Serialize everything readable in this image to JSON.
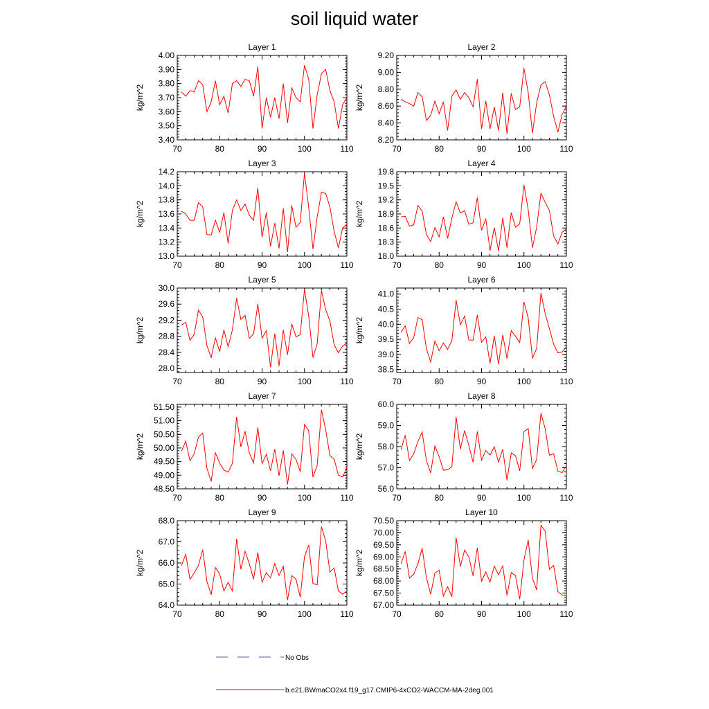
{
  "title": "soil liquid water",
  "legend": {
    "no_obs_label": "No Obs",
    "no_obs_color": "#5a5ab4",
    "model_label": "b.e21.BWmaCO2x4.f19_g17.CMIP6-4xCO2-WACCM-MA-2deg.001",
    "model_color": "#ff0000"
  },
  "chart_data": [
    {
      "type": "line",
      "title": "Layer 1",
      "ylabel": "kg/m^2",
      "xlim": [
        70,
        110
      ],
      "ylim": [
        3.4,
        4.0
      ],
      "xticks": [
        "70",
        "80",
        "90",
        "100",
        "110"
      ],
      "yticks": [
        "3.40",
        "3.50",
        "3.60",
        "3.70",
        "3.80",
        "3.90",
        "4.00"
      ],
      "series": [
        {
          "color": "#ff0000",
          "x": [
            71,
            72,
            73,
            74,
            75,
            76,
            77,
            78,
            79,
            80,
            81,
            82,
            83,
            84,
            85,
            86,
            87,
            88,
            89,
            90,
            91,
            92,
            93,
            94,
            95,
            96,
            97,
            98,
            99,
            100,
            101,
            102,
            103,
            104,
            105,
            106,
            107,
            108,
            109,
            110
          ],
          "values": [
            3.74,
            3.71,
            3.75,
            3.74,
            3.82,
            3.79,
            3.6,
            3.67,
            3.82,
            3.65,
            3.71,
            3.59,
            3.8,
            3.82,
            3.78,
            3.83,
            3.82,
            3.71,
            3.92,
            3.48,
            3.7,
            3.56,
            3.7,
            3.55,
            3.8,
            3.52,
            3.77,
            3.7,
            3.67,
            3.93,
            3.83,
            3.48,
            3.72,
            3.87,
            3.9,
            3.75,
            3.67,
            3.48,
            3.65,
            3.7
          ]
        }
      ]
    },
    {
      "type": "line",
      "title": "Layer 2",
      "ylabel": "kg/m^2",
      "xlim": [
        70,
        110
      ],
      "ylim": [
        8.2,
        9.2
      ],
      "xticks": [
        "70",
        "80",
        "90",
        "100",
        "110"
      ],
      "yticks": [
        "8.20",
        "8.40",
        "8.60",
        "8.80",
        "9.00",
        "9.20"
      ],
      "series": [
        {
          "color": "#ff0000",
          "x": [
            71,
            72,
            73,
            74,
            75,
            76,
            77,
            78,
            79,
            80,
            81,
            82,
            83,
            84,
            85,
            86,
            87,
            88,
            89,
            90,
            91,
            92,
            93,
            94,
            95,
            96,
            97,
            98,
            99,
            100,
            101,
            102,
            103,
            104,
            105,
            106,
            107,
            108,
            109,
            110
          ],
          "values": [
            8.68,
            8.65,
            8.63,
            8.6,
            8.76,
            8.71,
            8.43,
            8.49,
            8.66,
            8.51,
            8.65,
            8.31,
            8.72,
            8.79,
            8.68,
            8.76,
            8.7,
            8.59,
            8.92,
            8.33,
            8.66,
            8.33,
            8.59,
            8.31,
            8.76,
            8.27,
            8.75,
            8.56,
            8.59,
            9.05,
            8.76,
            8.28,
            8.64,
            8.85,
            8.89,
            8.73,
            8.48,
            8.29,
            8.5,
            8.6
          ]
        }
      ]
    },
    {
      "type": "line",
      "title": "Layer 3",
      "ylabel": "kg/m^2",
      "xlim": [
        70,
        110
      ],
      "ylim": [
        13.0,
        14.2
      ],
      "xticks": [
        "70",
        "80",
        "90",
        "100",
        "110"
      ],
      "yticks": [
        "13.0",
        "13.2",
        "13.4",
        "13.6",
        "13.8",
        "14.0",
        "14.2"
      ],
      "series": [
        {
          "color": "#ff0000",
          "x": [
            71,
            72,
            73,
            74,
            75,
            76,
            77,
            78,
            79,
            80,
            81,
            82,
            83,
            84,
            85,
            86,
            87,
            88,
            89,
            90,
            91,
            92,
            93,
            94,
            95,
            96,
            97,
            98,
            99,
            100,
            101,
            102,
            103,
            104,
            105,
            106,
            107,
            108,
            109,
            110
          ],
          "values": [
            13.64,
            13.6,
            13.51,
            13.51,
            13.76,
            13.7,
            13.31,
            13.3,
            13.51,
            13.34,
            13.62,
            13.18,
            13.65,
            13.8,
            13.65,
            13.74,
            13.58,
            13.51,
            13.97,
            13.27,
            13.62,
            13.14,
            13.47,
            13.11,
            13.68,
            13.06,
            13.72,
            13.41,
            13.48,
            14.18,
            13.69,
            13.1,
            13.56,
            13.91,
            13.89,
            13.7,
            13.35,
            13.12,
            13.4,
            13.45
          ]
        }
      ]
    },
    {
      "type": "line",
      "title": "Layer 4",
      "ylabel": "kg/m^2",
      "xlim": [
        70,
        110
      ],
      "ylim": [
        18.0,
        19.8
      ],
      "xticks": [
        "70",
        "80",
        "90",
        "100",
        "110"
      ],
      "yticks": [
        "18.0",
        "18.3",
        "18.6",
        "18.9",
        "19.2",
        "19.5",
        "19.8"
      ],
      "series": [
        {
          "color": "#ff0000",
          "x": [
            71,
            72,
            73,
            74,
            75,
            76,
            77,
            78,
            79,
            80,
            81,
            82,
            83,
            84,
            85,
            86,
            87,
            88,
            89,
            90,
            91,
            92,
            93,
            94,
            95,
            96,
            97,
            98,
            99,
            100,
            101,
            102,
            103,
            104,
            105,
            106,
            107,
            108,
            109,
            110
          ],
          "values": [
            18.84,
            18.85,
            18.64,
            18.67,
            19.08,
            18.96,
            18.46,
            18.31,
            18.61,
            18.41,
            18.84,
            18.38,
            18.81,
            19.16,
            18.92,
            18.97,
            18.68,
            18.71,
            19.25,
            18.55,
            18.8,
            18.12,
            18.61,
            18.11,
            18.82,
            18.18,
            18.93,
            18.62,
            18.69,
            19.52,
            18.99,
            18.18,
            18.62,
            19.34,
            19.15,
            18.97,
            18.43,
            18.26,
            18.51,
            18.58
          ]
        }
      ]
    },
    {
      "type": "line",
      "title": "Layer 5",
      "ylabel": "kg/m^2",
      "xlim": [
        70,
        110
      ],
      "ylim": [
        27.9,
        30.0
      ],
      "xticks": [
        "70",
        "80",
        "90",
        "100",
        "110"
      ],
      "yticks": [
        "28.0",
        "28.4",
        "28.8",
        "29.2",
        "29.6",
        "30.0"
      ],
      "series": [
        {
          "color": "#ff0000",
          "x": [
            71,
            72,
            73,
            74,
            75,
            76,
            77,
            78,
            79,
            80,
            81,
            82,
            83,
            84,
            85,
            86,
            87,
            88,
            89,
            90,
            91,
            92,
            93,
            94,
            95,
            96,
            97,
            98,
            99,
            100,
            101,
            102,
            103,
            104,
            105,
            106,
            107,
            108,
            109,
            110
          ],
          "values": [
            29.08,
            29.15,
            28.7,
            28.85,
            29.45,
            29.28,
            28.57,
            28.27,
            28.76,
            28.42,
            28.96,
            28.54,
            28.96,
            29.75,
            29.22,
            29.32,
            28.75,
            28.86,
            29.6,
            28.75,
            28.94,
            28.03,
            28.87,
            28.06,
            28.96,
            28.34,
            29.11,
            28.79,
            28.84,
            29.97,
            29.3,
            28.27,
            28.62,
            29.94,
            29.46,
            29.18,
            28.59,
            28.39,
            28.56,
            28.63
          ]
        }
      ]
    },
    {
      "type": "line",
      "title": "Layer 6",
      "ylabel": "kg/m^2",
      "xlim": [
        70,
        110
      ],
      "ylim": [
        38.4,
        41.2
      ],
      "xticks": [
        "70",
        "80",
        "90",
        "100",
        "110"
      ],
      "yticks": [
        "38.5",
        "39.0",
        "39.5",
        "40.0",
        "40.5",
        "41.0"
      ],
      "series": [
        {
          "color": "#ff0000",
          "x": [
            71,
            72,
            73,
            74,
            75,
            76,
            77,
            78,
            79,
            80,
            81,
            82,
            83,
            84,
            85,
            86,
            87,
            88,
            89,
            90,
            91,
            92,
            93,
            94,
            95,
            96,
            97,
            98,
            99,
            100,
            101,
            102,
            103,
            104,
            105,
            106,
            107,
            108,
            109,
            110
          ],
          "values": [
            39.73,
            39.95,
            39.36,
            39.56,
            40.22,
            40.15,
            39.19,
            38.75,
            39.44,
            39.12,
            39.38,
            39.17,
            39.45,
            40.8,
            39.98,
            40.27,
            39.48,
            39.47,
            40.31,
            39.4,
            39.58,
            38.7,
            39.62,
            38.68,
            39.65,
            38.86,
            39.79,
            39.6,
            39.39,
            40.74,
            40.21,
            38.88,
            39.2,
            41.04,
            40.36,
            39.85,
            39.34,
            39.05,
            39.08,
            39.25
          ]
        }
      ]
    },
    {
      "type": "line",
      "title": "Layer 7",
      "ylabel": "kg/m^2",
      "xlim": [
        70,
        110
      ],
      "ylim": [
        48.5,
        51.6
      ],
      "xticks": [
        "70",
        "80",
        "90",
        "100",
        "110"
      ],
      "yticks": [
        "48.50",
        "49.00",
        "49.50",
        "50.00",
        "50.50",
        "51.00",
        "51.50"
      ],
      "series": [
        {
          "color": "#ff0000",
          "x": [
            71,
            72,
            73,
            74,
            75,
            76,
            77,
            78,
            79,
            80,
            81,
            82,
            83,
            84,
            85,
            86,
            87,
            88,
            89,
            90,
            91,
            92,
            93,
            94,
            95,
            96,
            97,
            98,
            99,
            100,
            101,
            102,
            103,
            104,
            105,
            106,
            107,
            108,
            109,
            110
          ],
          "values": [
            49.88,
            50.25,
            49.53,
            49.79,
            50.4,
            50.55,
            49.25,
            48.77,
            49.82,
            49.44,
            49.19,
            49.11,
            49.43,
            51.14,
            50.04,
            50.61,
            49.81,
            49.45,
            50.75,
            49.42,
            49.77,
            49.16,
            49.96,
            48.98,
            49.91,
            48.66,
            49.78,
            49.58,
            49.13,
            50.86,
            50.63,
            48.93,
            49.36,
            51.4,
            50.67,
            49.72,
            49.59,
            49.0,
            48.94,
            49.28
          ]
        }
      ]
    },
    {
      "type": "line",
      "title": "Layer 8",
      "ylabel": "kg/m^2",
      "xlim": [
        70,
        110
      ],
      "ylim": [
        56.0,
        60.0
      ],
      "xticks": [
        "70",
        "80",
        "90",
        "100",
        "110"
      ],
      "yticks": [
        "56.0",
        "57.0",
        "58.0",
        "59.0",
        "60.0"
      ],
      "series": [
        {
          "color": "#ff0000",
          "x": [
            71,
            72,
            73,
            74,
            75,
            76,
            77,
            78,
            79,
            80,
            81,
            82,
            83,
            84,
            85,
            86,
            87,
            88,
            89,
            90,
            91,
            92,
            93,
            94,
            95,
            96,
            97,
            98,
            99,
            100,
            101,
            102,
            103,
            104,
            105,
            106,
            107,
            108,
            109,
            110
          ],
          "values": [
            57.85,
            58.54,
            57.34,
            57.66,
            58.25,
            58.69,
            57.33,
            56.75,
            58.03,
            57.52,
            56.88,
            56.9,
            57.04,
            59.41,
            57.88,
            58.76,
            58.06,
            57.26,
            58.71,
            57.36,
            57.82,
            57.6,
            57.99,
            57.27,
            57.87,
            56.41,
            57.7,
            57.57,
            56.85,
            58.72,
            58.85,
            56.96,
            57.39,
            59.58,
            58.85,
            57.59,
            57.66,
            56.83,
            56.77,
            57.1
          ]
        }
      ]
    },
    {
      "type": "line",
      "title": "Layer 9",
      "ylabel": "kg/m^2",
      "xlim": [
        70,
        110
      ],
      "ylim": [
        64.0,
        68.0
      ],
      "xticks": [
        "70",
        "80",
        "90",
        "100",
        "110"
      ],
      "yticks": [
        "64.0",
        "65.0",
        "66.0",
        "67.0",
        "68.0"
      ],
      "series": [
        {
          "color": "#ff0000",
          "x": [
            71,
            72,
            73,
            74,
            75,
            76,
            77,
            78,
            79,
            80,
            81,
            82,
            83,
            84,
            85,
            86,
            87,
            88,
            89,
            90,
            91,
            92,
            93,
            94,
            95,
            96,
            97,
            98,
            99,
            100,
            101,
            102,
            103,
            104,
            105,
            106,
            107,
            108,
            109,
            110
          ],
          "values": [
            65.88,
            66.41,
            65.22,
            65.52,
            65.88,
            66.63,
            65.12,
            64.49,
            65.78,
            65.48,
            64.67,
            65.08,
            64.67,
            67.14,
            65.7,
            66.55,
            65.95,
            65.23,
            66.5,
            65.08,
            65.54,
            65.29,
            65.97,
            65.4,
            65.84,
            64.24,
            65.4,
            65.23,
            64.37,
            66.29,
            66.85,
            65.03,
            64.96,
            67.72,
            67.04,
            65.56,
            65.76,
            64.67,
            64.52,
            64.67
          ]
        }
      ]
    },
    {
      "type": "line",
      "title": "Layer 10",
      "ylabel": "kg/m^2",
      "xlim": [
        70,
        110
      ],
      "ylim": [
        67.0,
        70.5
      ],
      "xticks": [
        "70",
        "80",
        "90",
        "100",
        "110"
      ],
      "yticks": [
        "67.00",
        "67.50",
        "68.00",
        "68.50",
        "69.00",
        "69.50",
        "70.00",
        "70.50"
      ],
      "series": [
        {
          "color": "#ff0000",
          "x": [
            71,
            72,
            73,
            74,
            75,
            76,
            77,
            78,
            79,
            80,
            81,
            82,
            83,
            84,
            85,
            86,
            87,
            88,
            89,
            90,
            91,
            92,
            93,
            94,
            95,
            96,
            97,
            98,
            99,
            100,
            101,
            102,
            103,
            104,
            105,
            106,
            107,
            108,
            109,
            110
          ],
          "values": [
            68.71,
            69.23,
            68.12,
            68.28,
            68.72,
            69.36,
            68.14,
            67.45,
            68.33,
            68.45,
            67.38,
            67.76,
            67.35,
            69.8,
            68.6,
            69.28,
            69.0,
            68.21,
            69.38,
            67.99,
            68.38,
            67.96,
            68.62,
            68.26,
            68.63,
            67.4,
            68.35,
            68.22,
            67.25,
            68.87,
            69.7,
            68.11,
            67.63,
            70.31,
            70.06,
            68.49,
            68.64,
            67.56,
            67.42,
            67.4
          ]
        }
      ]
    }
  ]
}
